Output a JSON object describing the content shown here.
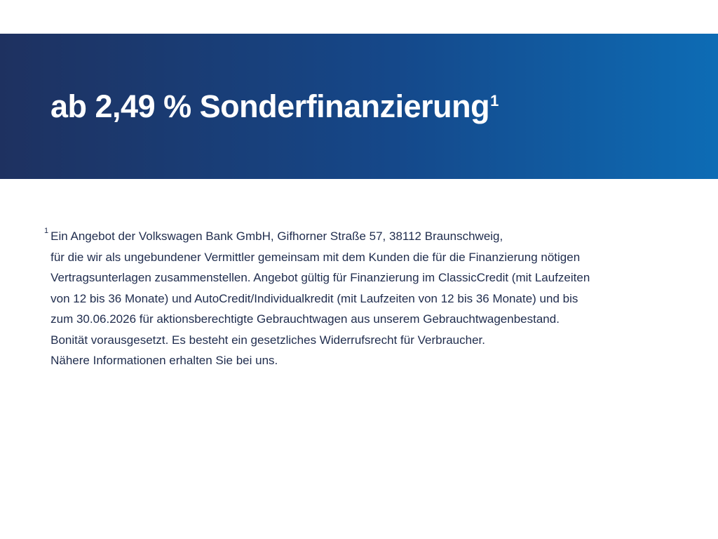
{
  "page": {
    "background": "#ffffff"
  },
  "banner": {
    "headline": "ab 2,49 % Sonderfinanzierung",
    "headline_superscript": "1",
    "gradient_start": "#1e3160",
    "gradient_end": "#0d6cb5",
    "text_color": "#ffffff"
  },
  "footnote": {
    "marker": "1",
    "text_color": "#1f2c4d",
    "lines": [
      "Ein Angebot der Volkswagen Bank GmbH, Gifhorner Straße 57, 38112 Braunschweig,",
      "für die wir als ungebundener Vermittler gemeinsam mit dem Kunden die für die Finanzierung nötigen",
      "Vertragsunterlagen zusammenstellen. Angebot gültig für Finanzierung im ClassicCredit (mit Laufzeiten",
      "von 12 bis 36 Monate) und AutoCredit/Individualkredit (mit Laufzeiten von 12 bis 36 Monate) und bis",
      "zum 30.06.2026 für aktionsberechtigte Gebrauchtwagen aus unserem Gebrauchtwagenbestand.",
      "Bonität vorausgesetzt. Es besteht ein gesetzliches Widerrufsrecht für Verbraucher.",
      "Nähere Informationen erhalten Sie bei uns."
    ]
  }
}
